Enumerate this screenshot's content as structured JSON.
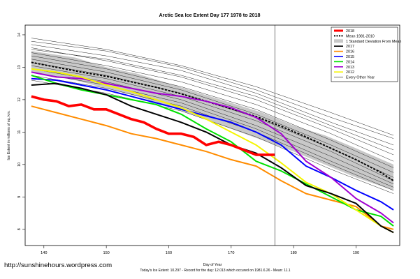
{
  "chart_data": {
    "type": "line",
    "title": "Arctic Sea Ice Extent Day 177 1978 to 2018",
    "xlabel": "Day of Year",
    "ylabel": "Ice Extent in millions of sq. km.",
    "xlim": [
      137,
      197
    ],
    "ylim": [
      7.5,
      14.3
    ],
    "xticks": [
      140,
      150,
      160,
      170,
      180,
      190
    ],
    "yticks": [
      8,
      9,
      10,
      11,
      12,
      13,
      14
    ],
    "current_day": 177,
    "grid": false,
    "legend_position": "top-right",
    "footer": "Today's Ice Extent: 10.297  - Record for the day: 12.013 which occured on 1981.6.26  - Mean: 11.1",
    "watermark": "http://sunshinehours.wordpress.com",
    "legend": [
      {
        "label": "2018",
        "color": "#ff0000",
        "style": "thick"
      },
      {
        "label": "Mean 1981-2010",
        "color": "#000000",
        "style": "dotted"
      },
      {
        "label": "1 Standard Deviation From Mean",
        "color": "#c8c8c8",
        "style": "band"
      },
      {
        "label": "2017",
        "color": "#000000",
        "style": "line"
      },
      {
        "label": "2016",
        "color": "#ff8c00",
        "style": "line"
      },
      {
        "label": "2015",
        "color": "#0000ff",
        "style": "line"
      },
      {
        "label": "2014",
        "color": "#00e000",
        "style": "line"
      },
      {
        "label": "2013",
        "color": "#a000d0",
        "style": "line"
      },
      {
        "label": "2012",
        "color": "#f5f500",
        "style": "line"
      },
      {
        "label": "Every Other Year",
        "color": "#000000",
        "style": "thin"
      }
    ],
    "band": {
      "x": [
        138,
        145,
        150,
        155,
        160,
        165,
        170,
        175,
        180,
        185,
        190,
        196
      ],
      "upper": [
        13.5,
        13.3,
        13.0,
        12.8,
        12.5,
        12.2,
        11.9,
        11.6,
        11.2,
        10.9,
        10.5,
        10.0
      ],
      "lower": [
        12.85,
        12.6,
        12.35,
        12.1,
        11.8,
        11.45,
        11.1,
        10.75,
        10.4,
        10.0,
        9.6,
        9.2
      ]
    },
    "mean": {
      "x": [
        138,
        142,
        146,
        150,
        154,
        158,
        162,
        166,
        170,
        174,
        178,
        182,
        186,
        190,
        194,
        196
      ],
      "y": [
        13.15,
        13.0,
        12.85,
        12.72,
        12.55,
        12.38,
        12.18,
        11.95,
        11.72,
        11.48,
        11.18,
        10.85,
        10.5,
        10.15,
        9.75,
        9.5
      ]
    },
    "series": [
      {
        "name": "2018",
        "x": [
          138,
          140,
          142,
          144,
          146,
          148,
          150,
          152,
          154,
          156,
          158,
          160,
          162,
          164,
          166,
          168,
          170,
          172,
          174,
          176,
          177
        ],
        "y": [
          12.1,
          12.0,
          11.95,
          11.8,
          11.85,
          11.7,
          11.7,
          11.55,
          11.4,
          11.3,
          11.1,
          10.95,
          10.95,
          10.85,
          10.6,
          10.7,
          10.6,
          10.45,
          10.3,
          10.3,
          10.3
        ]
      },
      {
        "name": "2017",
        "x": [
          138,
          142,
          146,
          150,
          154,
          158,
          162,
          166,
          170,
          174,
          178,
          182,
          186,
          190,
          194,
          196
        ],
        "y": [
          12.45,
          12.5,
          12.35,
          12.15,
          11.8,
          11.55,
          11.3,
          11.0,
          10.6,
          10.35,
          9.9,
          9.35,
          9.1,
          8.8,
          8.1,
          7.9
        ]
      },
      {
        "name": "2016",
        "x": [
          138,
          142,
          146,
          150,
          154,
          158,
          162,
          166,
          170,
          174,
          178,
          182,
          186,
          190,
          194,
          196
        ],
        "y": [
          11.8,
          11.6,
          11.4,
          11.2,
          10.95,
          10.8,
          10.6,
          10.4,
          10.15,
          9.95,
          9.5,
          9.1,
          8.9,
          8.7,
          8.1,
          8.0
        ]
      },
      {
        "name": "2015",
        "x": [
          138,
          142,
          146,
          150,
          154,
          158,
          162,
          166,
          170,
          174,
          178,
          182,
          186,
          190,
          194,
          196
        ],
        "y": [
          12.65,
          12.6,
          12.45,
          12.3,
          12.1,
          11.9,
          11.7,
          11.5,
          11.3,
          11.0,
          10.6,
          9.95,
          9.6,
          9.2,
          8.85,
          8.6
        ]
      },
      {
        "name": "2014",
        "x": [
          138,
          142,
          146,
          150,
          154,
          158,
          162,
          166,
          170,
          174,
          178,
          182,
          186,
          190,
          194,
          196
        ],
        "y": [
          12.75,
          12.5,
          12.3,
          12.15,
          12.0,
          11.85,
          11.55,
          11.1,
          10.7,
          10.1,
          9.8,
          9.4,
          9.0,
          8.6,
          8.4,
          8.1
        ]
      },
      {
        "name": "2013",
        "x": [
          138,
          142,
          146,
          150,
          154,
          158,
          162,
          166,
          170,
          174,
          178,
          182,
          186,
          190,
          194,
          196
        ],
        "y": [
          12.85,
          12.7,
          12.65,
          12.5,
          12.35,
          12.2,
          12.1,
          11.95,
          11.75,
          11.45,
          10.95,
          10.1,
          9.6,
          8.95,
          8.5,
          8.2
        ]
      },
      {
        "name": "2012",
        "x": [
          138,
          142,
          146,
          150,
          154,
          158,
          162,
          166,
          170,
          174,
          178,
          182,
          186,
          190,
          194,
          196
        ],
        "y": [
          12.95,
          12.85,
          12.7,
          12.45,
          12.25,
          12.0,
          11.75,
          11.4,
          11.0,
          10.6,
          10.05,
          9.45,
          9.1,
          8.6,
          8.1,
          7.9
        ]
      }
    ],
    "gray_years": [
      {
        "x": [
          138,
          150,
          162,
          174,
          186,
          196
        ],
        "y": [
          13.9,
          13.55,
          13.05,
          12.4,
          11.6,
          10.9
        ]
      },
      {
        "x": [
          138,
          150,
          162,
          174,
          186,
          196
        ],
        "y": [
          13.7,
          13.35,
          12.9,
          12.2,
          11.3,
          10.6
        ]
      },
      {
        "x": [
          138,
          150,
          162,
          174,
          186,
          196
        ],
        "y": [
          13.6,
          13.2,
          12.7,
          12.0,
          11.1,
          10.3
        ]
      },
      {
        "x": [
          138,
          150,
          162,
          174,
          186,
          196
        ],
        "y": [
          13.45,
          13.05,
          12.55,
          11.85,
          10.95,
          10.1
        ]
      },
      {
        "x": [
          138,
          150,
          162,
          174,
          186,
          196
        ],
        "y": [
          13.35,
          12.95,
          12.4,
          11.7,
          10.75,
          9.9
        ]
      },
      {
        "x": [
          138,
          150,
          162,
          174,
          186,
          196
        ],
        "y": [
          13.25,
          12.85,
          12.3,
          11.55,
          10.6,
          9.75
        ]
      },
      {
        "x": [
          138,
          150,
          162,
          174,
          186,
          196
        ],
        "y": [
          13.15,
          12.75,
          12.2,
          11.45,
          10.5,
          9.6
        ]
      },
      {
        "x": [
          138,
          150,
          162,
          174,
          186,
          196
        ],
        "y": [
          13.05,
          12.65,
          12.1,
          11.35,
          10.4,
          9.5
        ]
      },
      {
        "x": [
          138,
          150,
          162,
          174,
          186,
          196
        ],
        "y": [
          12.95,
          12.55,
          12.0,
          11.2,
          10.25,
          9.4
        ]
      },
      {
        "x": [
          138,
          150,
          162,
          174,
          186,
          196
        ],
        "y": [
          12.85,
          12.45,
          11.9,
          11.1,
          10.1,
          9.3
        ]
      },
      {
        "x": [
          138,
          150,
          162,
          174,
          186,
          196
        ],
        "y": [
          12.75,
          12.35,
          11.8,
          11.0,
          10.0,
          9.2
        ]
      },
      {
        "x": [
          138,
          150,
          162,
          174,
          186,
          196
        ],
        "y": [
          12.6,
          12.2,
          11.65,
          10.85,
          9.85,
          9.1
        ]
      },
      {
        "x": [
          138,
          150,
          162,
          174,
          186,
          196
        ],
        "y": [
          13.8,
          13.5,
          13.0,
          12.3,
          11.45,
          10.8
        ]
      },
      {
        "x": [
          138,
          150,
          162,
          174,
          186,
          196
        ],
        "y": [
          13.55,
          13.25,
          12.75,
          12.1,
          11.2,
          10.45
        ]
      }
    ]
  }
}
